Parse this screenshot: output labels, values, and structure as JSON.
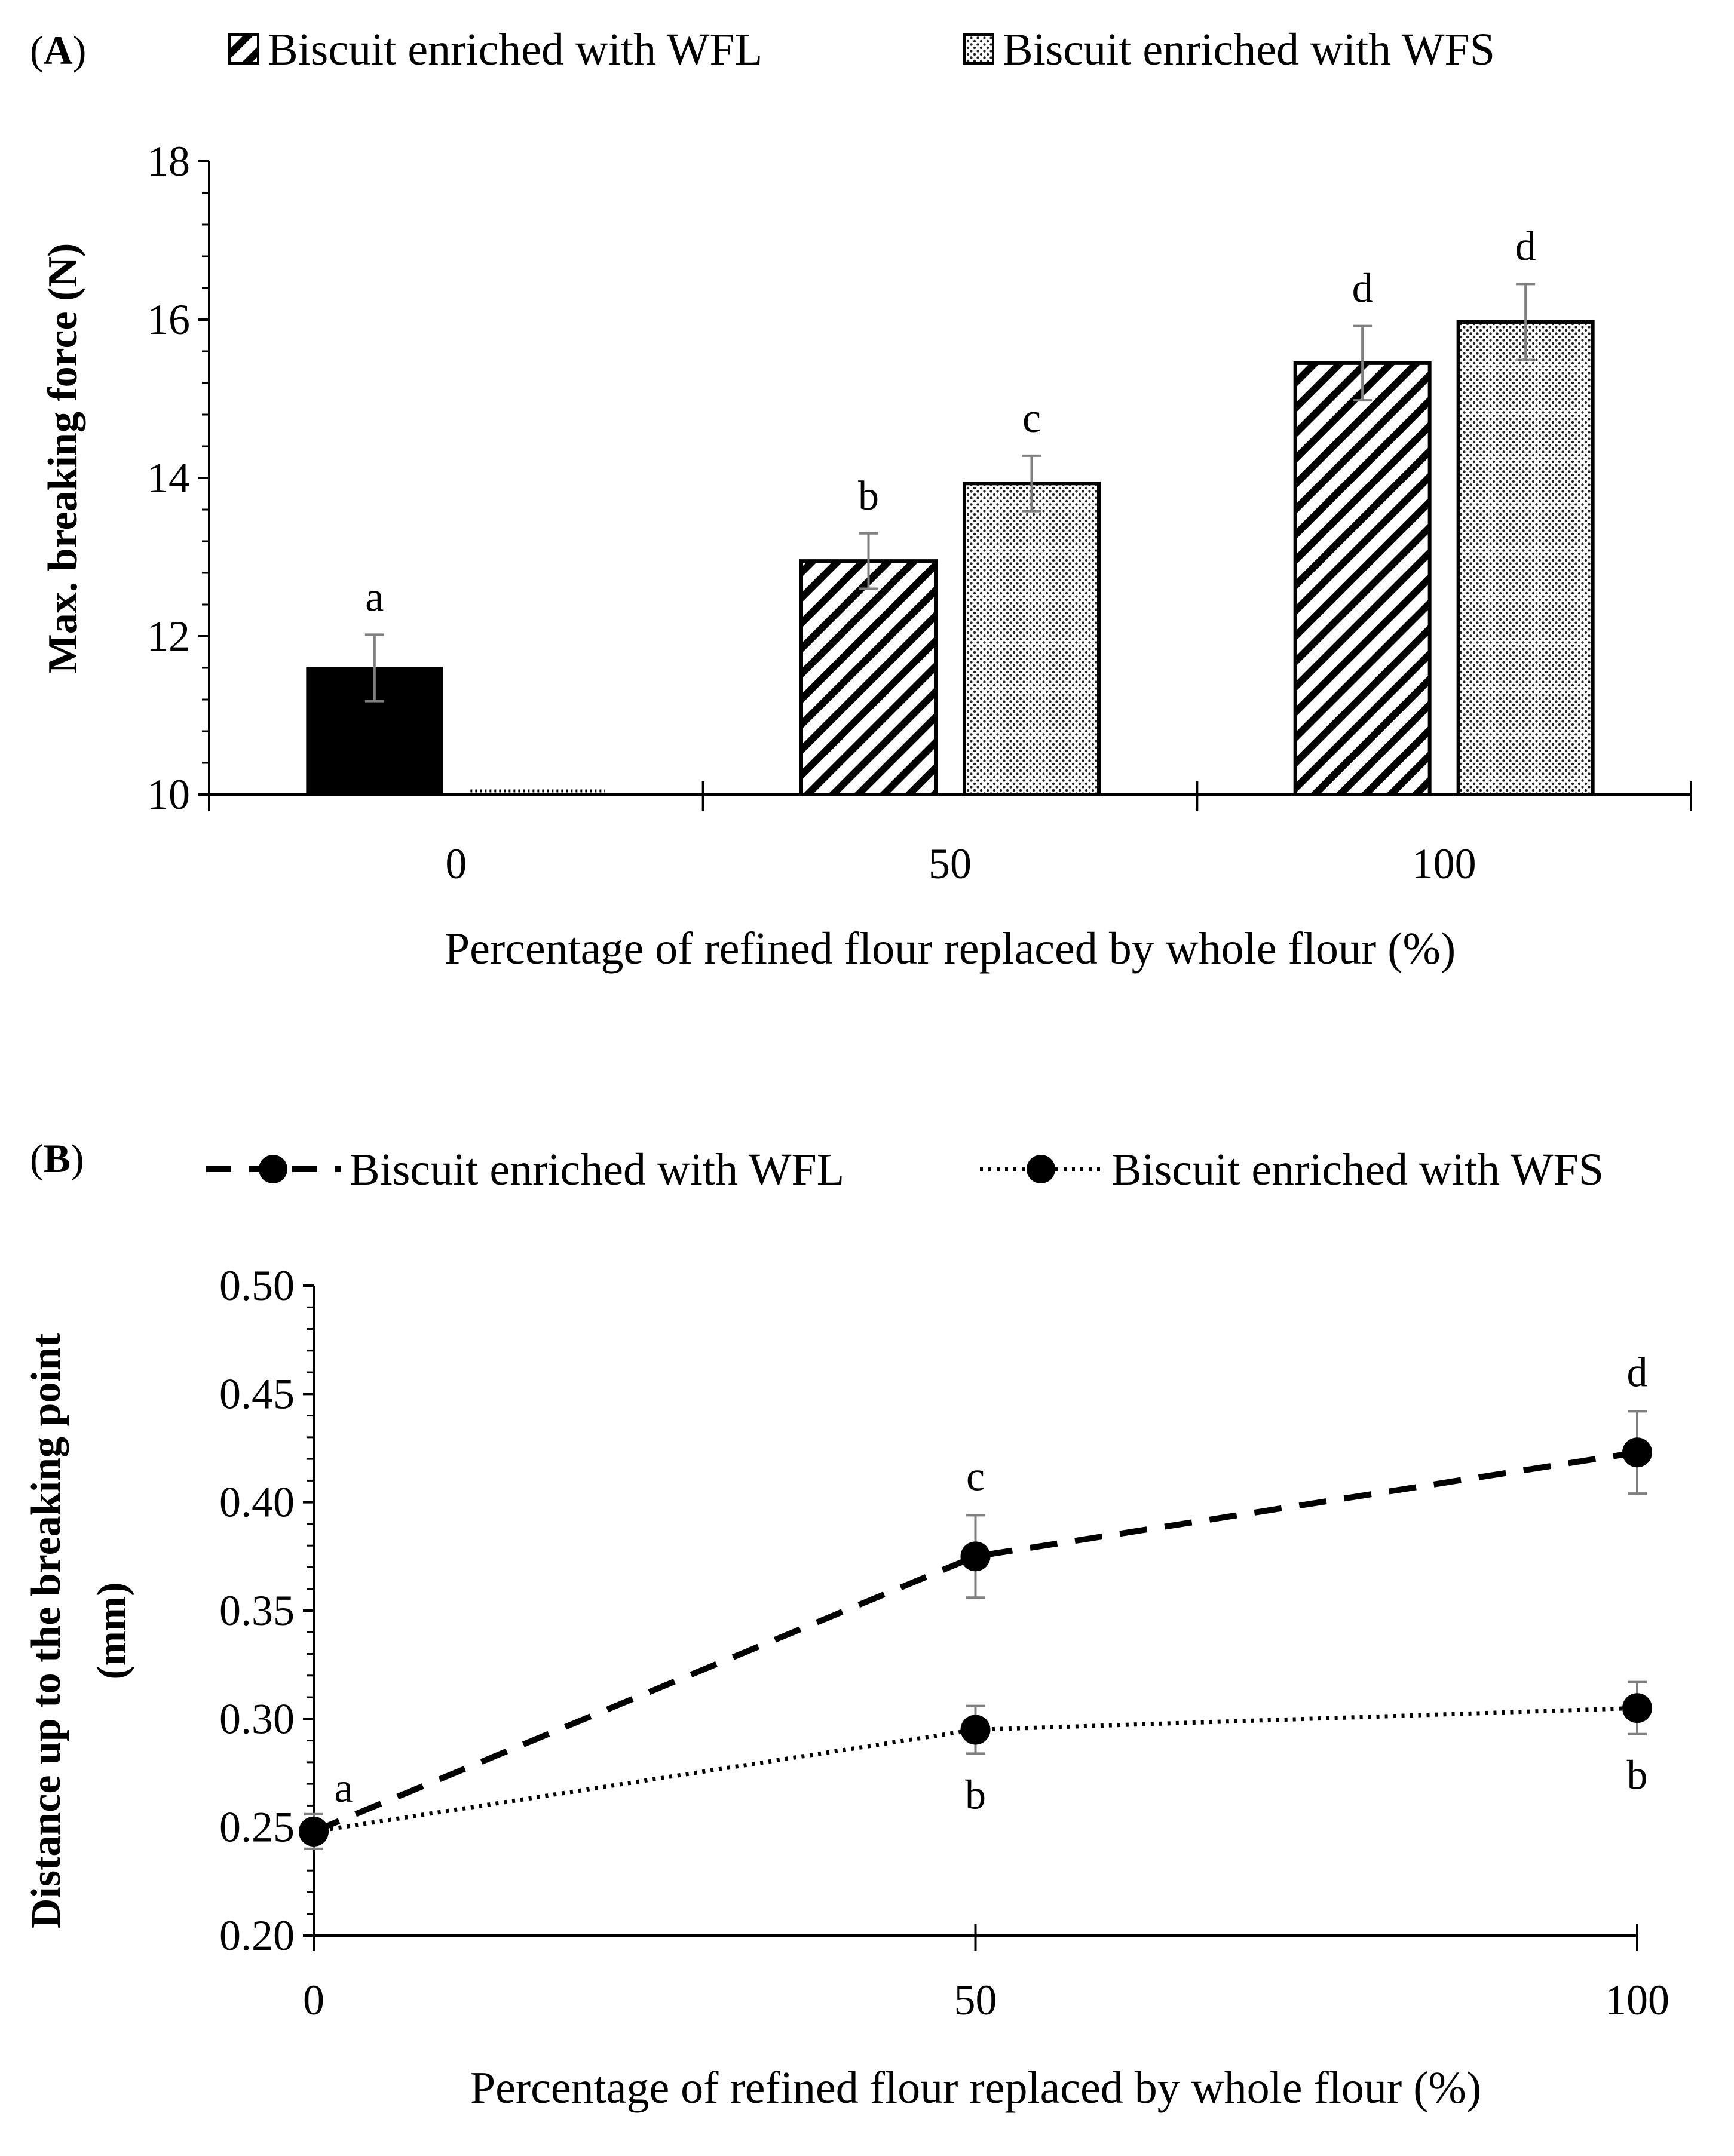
{
  "chart_data": [
    {
      "type": "bar",
      "panel_label": "A",
      "legend": [
        {
          "name": "Biscuit enriched with WFL",
          "pattern": "diagonal-hatch"
        },
        {
          "name": "Biscuit enriched with WFS",
          "pattern": "dotted"
        }
      ],
      "categories": [
        "0",
        "50",
        "100"
      ],
      "control": {
        "category": "0",
        "value": 11.6,
        "error": 0.42,
        "letter": "a",
        "fill": "#000000"
      },
      "series": [
        {
          "name": "Biscuit enriched with WFL",
          "values": [
            null,
            12.95,
            15.45
          ],
          "errors": [
            null,
            0.35,
            0.47
          ],
          "letters": [
            null,
            "b",
            "d"
          ]
        },
        {
          "name": "Biscuit enriched with WFS",
          "values": [
            null,
            13.93,
            15.97
          ],
          "errors": [
            null,
            0.35,
            0.48
          ],
          "letters": [
            null,
            "c",
            "d"
          ]
        }
      ],
      "ylabel": "Max. breaking force (N)",
      "xlabel": "Percentage of refined flour replaced by whole flour (%)",
      "ylim": [
        10,
        18
      ],
      "yticks": [
        "10",
        "12",
        "14",
        "16",
        "18"
      ]
    },
    {
      "type": "line",
      "panel_label": "B",
      "x": [
        0,
        50,
        100
      ],
      "xticks": [
        "0",
        "50",
        "100"
      ],
      "series": [
        {
          "name": "Biscuit enriched with WFL",
          "style": "dashed",
          "values": [
            0.248,
            0.375,
            0.423
          ],
          "errors": [
            0.008,
            0.019,
            0.019
          ],
          "letters": [
            "a",
            "c",
            "d"
          ],
          "letter_pos": [
            "above",
            "above",
            "above"
          ]
        },
        {
          "name": "Biscuit enriched with WFS",
          "style": "dotted",
          "values": [
            0.248,
            0.295,
            0.305
          ],
          "errors": [
            0.008,
            0.011,
            0.012
          ],
          "letters": [
            "",
            "b",
            "b"
          ],
          "letter_pos": [
            "",
            "below",
            "below"
          ]
        }
      ],
      "ylabel": "Distance up to the breaking point (mm)",
      "ylabel_lines": [
        "Distance up to the breaking point",
        "(mm)"
      ],
      "xlabel": "Percentage of refined flour replaced by whole flour (%)",
      "ylim": [
        0.2,
        0.5
      ],
      "yticks": [
        "0.20",
        "0.25",
        "0.30",
        "0.35",
        "0.40",
        "0.45",
        "0.50"
      ],
      "xlim": [
        0,
        100
      ]
    }
  ],
  "colors": {
    "axis": "#000000",
    "error_bar": "#7f7f7f",
    "marker": "#000000"
  }
}
